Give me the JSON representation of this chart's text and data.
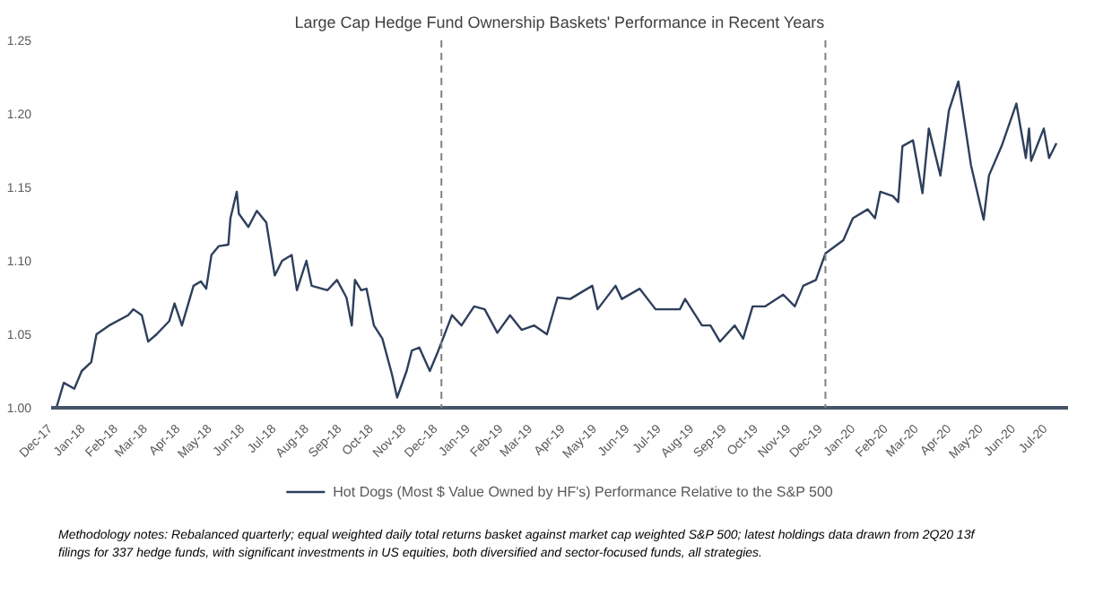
{
  "chart_data": {
    "type": "line",
    "title": "Large Cap Hedge Fund Ownership Baskets' Performance in Recent Years",
    "x": [
      "2017-12-06",
      "2017-12-13",
      "2017-12-23",
      "2017-12-30",
      "2018-01-08",
      "2018-01-13",
      "2018-01-25",
      "2018-02-12",
      "2018-02-17",
      "2018-02-25",
      "2018-03-03",
      "2018-03-11",
      "2018-03-23",
      "2018-03-28",
      "2018-04-04",
      "2018-04-15",
      "2018-04-22",
      "2018-04-27",
      "2018-05-02",
      "2018-05-09",
      "2018-05-18",
      "2018-05-20",
      "2018-05-26",
      "2018-05-28",
      "2018-06-06",
      "2018-06-14",
      "2018-06-23",
      "2018-07-01",
      "2018-07-08",
      "2018-07-17",
      "2018-07-22",
      "2018-07-31",
      "2018-08-05",
      "2018-08-20",
      "2018-08-29",
      "2018-09-07",
      "2018-09-12",
      "2018-09-15",
      "2018-09-21",
      "2018-09-26",
      "2018-10-03",
      "2018-10-11",
      "2018-10-20",
      "2018-10-25",
      "2018-11-03",
      "2018-11-08",
      "2018-11-15",
      "2018-11-25",
      "2018-12-02",
      "2018-12-16",
      "2018-12-25",
      "2019-01-06",
      "2019-01-16",
      "2019-01-28",
      "2019-02-09",
      "2019-02-20",
      "2019-03-04",
      "2019-03-16",
      "2019-03-26",
      "2019-04-07",
      "2019-04-28",
      "2019-05-03",
      "2019-05-20",
      "2019-05-26",
      "2019-06-12",
      "2019-06-27",
      "2019-07-20",
      "2019-07-25",
      "2019-08-10",
      "2019-08-18",
      "2019-08-27",
      "2019-09-10",
      "2019-09-18",
      "2019-09-27",
      "2019-10-09",
      "2019-10-26",
      "2019-11-06",
      "2019-11-14",
      "2019-11-26",
      "2019-12-05",
      "2019-12-22",
      "2019-12-31",
      "2020-01-14",
      "2020-01-21",
      "2020-01-26",
      "2020-02-07",
      "2020-02-12",
      "2020-02-16",
      "2020-02-26",
      "2020-03-06",
      "2020-03-12",
      "2020-03-23",
      "2020-03-31",
      "2020-04-09",
      "2020-04-21",
      "2020-05-03",
      "2020-05-08",
      "2020-05-20",
      "2020-06-03",
      "2020-06-12",
      "2020-06-15",
      "2020-06-17",
      "2020-06-29",
      "2020-07-04",
      "2020-07-11"
    ],
    "series": [
      {
        "name": "Hot Dogs (Most $ Value Owned by HF's) Performance Relative to the S&P 500",
        "color": "#2e3f5c",
        "values": [
          1.0,
          1.017,
          1.013,
          1.025,
          1.031,
          1.05,
          1.056,
          1.063,
          1.067,
          1.063,
          1.045,
          1.05,
          1.059,
          1.071,
          1.056,
          1.083,
          1.086,
          1.081,
          1.104,
          1.11,
          1.111,
          1.129,
          1.147,
          1.132,
          1.123,
          1.134,
          1.126,
          1.09,
          1.1,
          1.104,
          1.08,
          1.1,
          1.083,
          1.08,
          1.087,
          1.075,
          1.056,
          1.087,
          1.08,
          1.081,
          1.056,
          1.047,
          1.023,
          1.007,
          1.025,
          1.039,
          1.041,
          1.025,
          1.037,
          1.063,
          1.056,
          1.069,
          1.067,
          1.051,
          1.063,
          1.053,
          1.056,
          1.05,
          1.075,
          1.074,
          1.083,
          1.067,
          1.083,
          1.074,
          1.081,
          1.067,
          1.067,
          1.074,
          1.056,
          1.056,
          1.045,
          1.056,
          1.047,
          1.069,
          1.069,
          1.077,
          1.069,
          1.083,
          1.087,
          1.105,
          1.114,
          1.129,
          1.135,
          1.129,
          1.147,
          1.144,
          1.14,
          1.178,
          1.182,
          1.146,
          1.19,
          1.158,
          1.202,
          1.222,
          1.165,
          1.128,
          1.158,
          1.178,
          1.207,
          1.17,
          1.19,
          1.168,
          1.19,
          1.17,
          1.18
        ]
      }
    ],
    "xlim": [
      "2017-12-01",
      "2020-07-22"
    ],
    "xticks": [
      {
        "value": "2017-12-01",
        "label": "Dec-17"
      },
      {
        "value": "2018-01-01",
        "label": "Jan-18"
      },
      {
        "value": "2018-02-01",
        "label": "Feb-18"
      },
      {
        "value": "2018-03-01",
        "label": "Mar-18"
      },
      {
        "value": "2018-04-01",
        "label": "Apr-18"
      },
      {
        "value": "2018-05-01",
        "label": "May-18"
      },
      {
        "value": "2018-06-01",
        "label": "Jun-18"
      },
      {
        "value": "2018-07-01",
        "label": "Jul-18"
      },
      {
        "value": "2018-08-01",
        "label": "Aug-18"
      },
      {
        "value": "2018-09-01",
        "label": "Sep-18"
      },
      {
        "value": "2018-10-01",
        "label": "Oct-18"
      },
      {
        "value": "2018-11-01",
        "label": "Nov-18"
      },
      {
        "value": "2018-12-01",
        "label": "Dec-18"
      },
      {
        "value": "2019-01-01",
        "label": "Jan-19"
      },
      {
        "value": "2019-02-01",
        "label": "Feb-19"
      },
      {
        "value": "2019-03-01",
        "label": "Mar-19"
      },
      {
        "value": "2019-04-01",
        "label": "Apr-19"
      },
      {
        "value": "2019-05-01",
        "label": "May-19"
      },
      {
        "value": "2019-06-01",
        "label": "Jun-19"
      },
      {
        "value": "2019-07-01",
        "label": "Jul-19"
      },
      {
        "value": "2019-08-01",
        "label": "Aug-19"
      },
      {
        "value": "2019-09-01",
        "label": "Sep-19"
      },
      {
        "value": "2019-10-01",
        "label": "Oct-19"
      },
      {
        "value": "2019-11-01",
        "label": "Nov-19"
      },
      {
        "value": "2019-12-01",
        "label": "Dec-19"
      },
      {
        "value": "2020-01-01",
        "label": "Jan-20"
      },
      {
        "value": "2020-02-01",
        "label": "Feb-20"
      },
      {
        "value": "2020-03-01",
        "label": "Mar-20"
      },
      {
        "value": "2020-04-01",
        "label": "Apr-20"
      },
      {
        "value": "2020-05-01",
        "label": "May-20"
      },
      {
        "value": "2020-06-01",
        "label": "Jun-20"
      },
      {
        "value": "2020-07-01",
        "label": "Jul-20"
      }
    ],
    "ylim": [
      1.0,
      1.25
    ],
    "yticks": [
      {
        "value": 1.0,
        "label": "1.00"
      },
      {
        "value": 1.05,
        "label": "1.05"
      },
      {
        "value": 1.1,
        "label": "1.10"
      },
      {
        "value": 1.15,
        "label": "1.15"
      },
      {
        "value": 1.2,
        "label": "1.20"
      },
      {
        "value": 1.25,
        "label": "1.25"
      }
    ],
    "ref_lines": [
      {
        "axis": "x",
        "value": "2018-12-06",
        "color": "#808080",
        "line_style": "dashed"
      },
      {
        "axis": "x",
        "value": "2019-12-05",
        "color": "#808080",
        "line_style": "dashed"
      }
    ],
    "legend": "bottom",
    "grid": false,
    "marker": "none",
    "line_style": "solid",
    "annotations": [
      "Methodology notes: Rebalanced quarterly; equal weighted daily total returns basket against market cap weighted S&P 500; latest holdings data drawn from 2Q20 13f filings for 337 hedge funds, with significant investments in US equities, both diversified and sector-focused funds, all strategies."
    ]
  }
}
